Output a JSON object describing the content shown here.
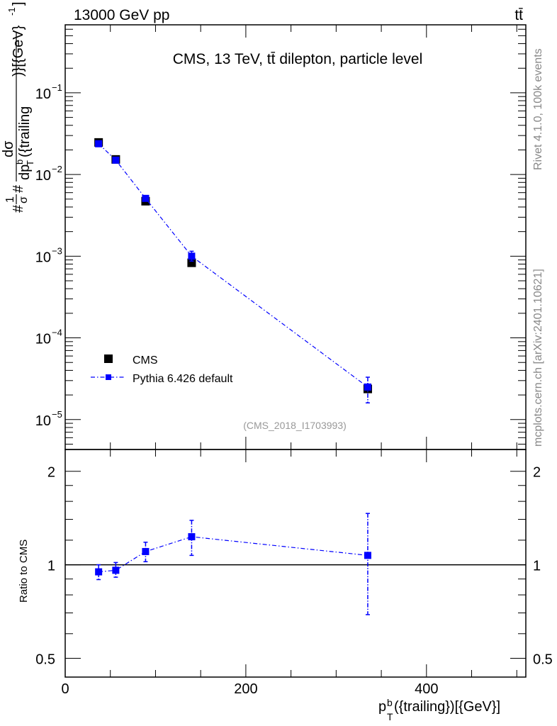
{
  "header": {
    "beam_label": "13000 GeV pp",
    "process_label": "tt̄",
    "plot_title": "CMS, 13 TeV, tt̄ dilepton, particle level",
    "analysis_id": "(CMS_2018_I1703993)",
    "side_text_top": "Rivet 4.1.0,  100k events",
    "side_text_bottom": "mcplots.cern.ch [arXiv:2401.10621]"
  },
  "colors": {
    "data": "#000000",
    "mc": "#0000ff",
    "watermark": "#999999",
    "side_text": "#888888"
  },
  "chart_data": [
    {
      "type": "scatter",
      "panel": "main",
      "ylabel": "#frac{1}{σ}#frac{dσ}{dp_T^b({trailing})}[{GeV}^{-1}]",
      "ylabel_parts": {
        "prefix": "#",
        "frac1_num": "1",
        "frac1_den": "σ",
        "mid": "#",
        "frac2_num": "dσ",
        "frac2_den": "dp",
        "sub": "T",
        "sup": "b",
        "tail": "({trailing",
        "close": ")}[{GeV}",
        "exp": "-1",
        "end": "]"
      },
      "yscale": "log",
      "ylim": [
        4.3e-06,
        0.68
      ],
      "xlim": [
        0,
        510
      ],
      "yticks": [
        {
          "v": 0.1,
          "label": "10",
          "exp": "−1"
        },
        {
          "v": 0.01,
          "label": "10",
          "exp": "−2"
        },
        {
          "v": 0.001,
          "label": "10",
          "exp": "−3"
        },
        {
          "v": 0.0001,
          "label": "10",
          "exp": "−4"
        },
        {
          "v": 1e-05,
          "label": "10",
          "exp": "−5"
        }
      ],
      "legend": {
        "placement": "bottom-left",
        "entries": [
          "CMS",
          "Pythia 6.426 default"
        ]
      },
      "series": [
        {
          "name": "CMS",
          "style": "marker",
          "x": [
            37,
            56,
            89,
            140,
            335
          ],
          "y": [
            0.0247,
            0.0153,
            0.00471,
            0.00083,
            2.37e-05
          ],
          "err_lo": [
            null,
            null,
            null,
            null,
            null
          ],
          "err_hi": [
            null,
            null,
            null,
            null,
            null
          ]
        },
        {
          "name": "Pythia 6.426 default",
          "style": "dashdot",
          "x": [
            37,
            56,
            89,
            140,
            335
          ],
          "y": [
            0.0238,
            0.015,
            0.0051,
            0.001,
            2.5e-05
          ],
          "err_lo": [
            0.0235,
            0.0148,
            0.0049,
            0.00087,
            1.6e-05
          ],
          "err_hi": [
            0.0241,
            0.0152,
            0.0053,
            0.00115,
            3.3e-05
          ]
        }
      ]
    },
    {
      "type": "scatter",
      "panel": "ratio",
      "ylabel": "Ratio to CMS",
      "xlabel_parts": {
        "p": "p",
        "sub": "T",
        "sup": "b",
        "rest": "({trailing})[{GeV}]"
      },
      "yscale": "log",
      "ylim": [
        0.435,
        2.35
      ],
      "xlim": [
        0,
        510
      ],
      "xticks": [
        {
          "v": 0,
          "label": "0"
        },
        {
          "v": 200,
          "label": "200"
        },
        {
          "v": 400,
          "label": "400"
        }
      ],
      "yticks": [
        {
          "v": 0.5,
          "label": "0.5"
        },
        {
          "v": 1,
          "label": "1"
        },
        {
          "v": 2,
          "label": "2"
        }
      ],
      "reference_line": 1,
      "series": [
        {
          "name": "Pythia 6.426 default",
          "x": [
            37,
            56,
            89,
            140,
            335
          ],
          "y": [
            0.949,
            0.96,
            1.103,
            1.231,
            1.072
          ],
          "err_lo": [
            0.896,
            0.912,
            1.023,
            1.072,
            0.691
          ],
          "err_hi": [
            1.0,
            1.017,
            1.182,
            1.39,
            1.463
          ]
        }
      ]
    }
  ]
}
